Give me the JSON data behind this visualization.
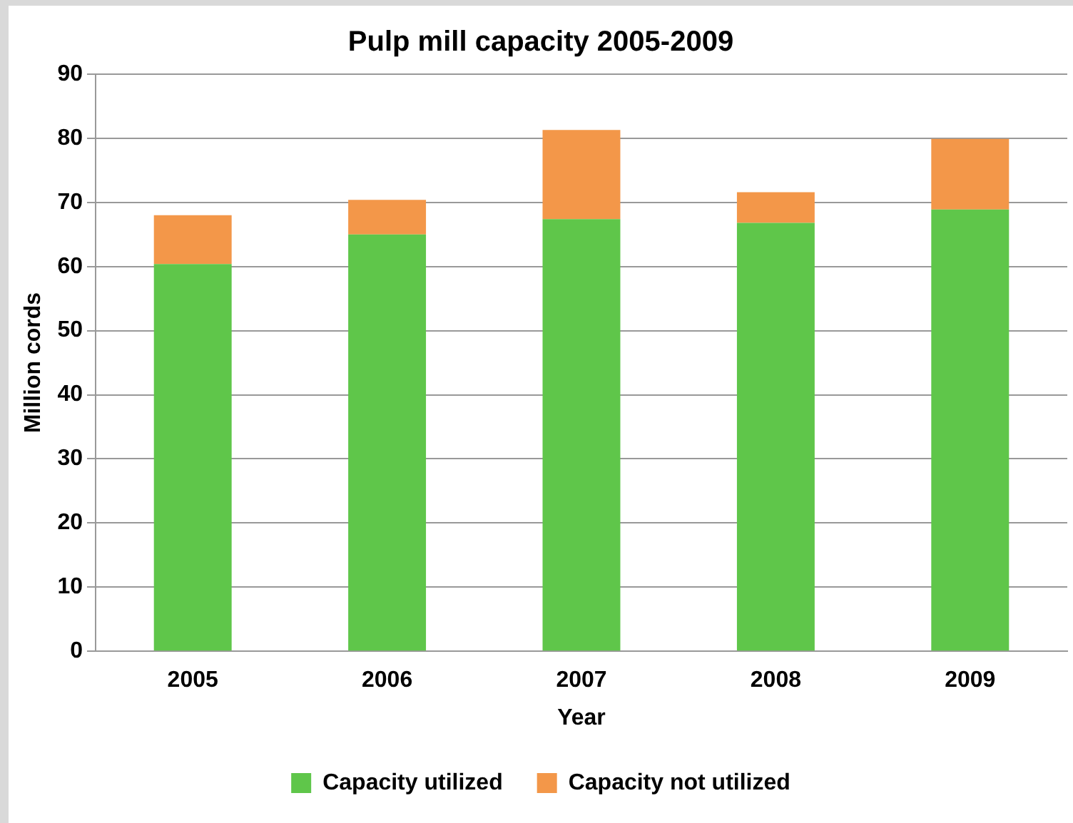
{
  "chart_data": {
    "type": "bar",
    "title": "Pulp mill capacity 2005-2009",
    "xlabel": "Year",
    "ylabel": "Million cords",
    "categories": [
      "2005",
      "2006",
      "2007",
      "2008",
      "2009"
    ],
    "stacked": true,
    "series": [
      {
        "name": "Capacity utilized",
        "color": "#5fc64a",
        "values": [
          60.4,
          65.0,
          67.4,
          66.8,
          68.9
        ]
      },
      {
        "name": "Capacity not utilized",
        "color": "#f39749",
        "values": [
          7.6,
          5.4,
          13.9,
          4.8,
          11.0
        ]
      }
    ],
    "ylim": [
      0,
      90
    ],
    "yticks": [
      0,
      10,
      20,
      30,
      40,
      50,
      60,
      70,
      80,
      90
    ],
    "grid": "y",
    "legend": "bottom"
  }
}
